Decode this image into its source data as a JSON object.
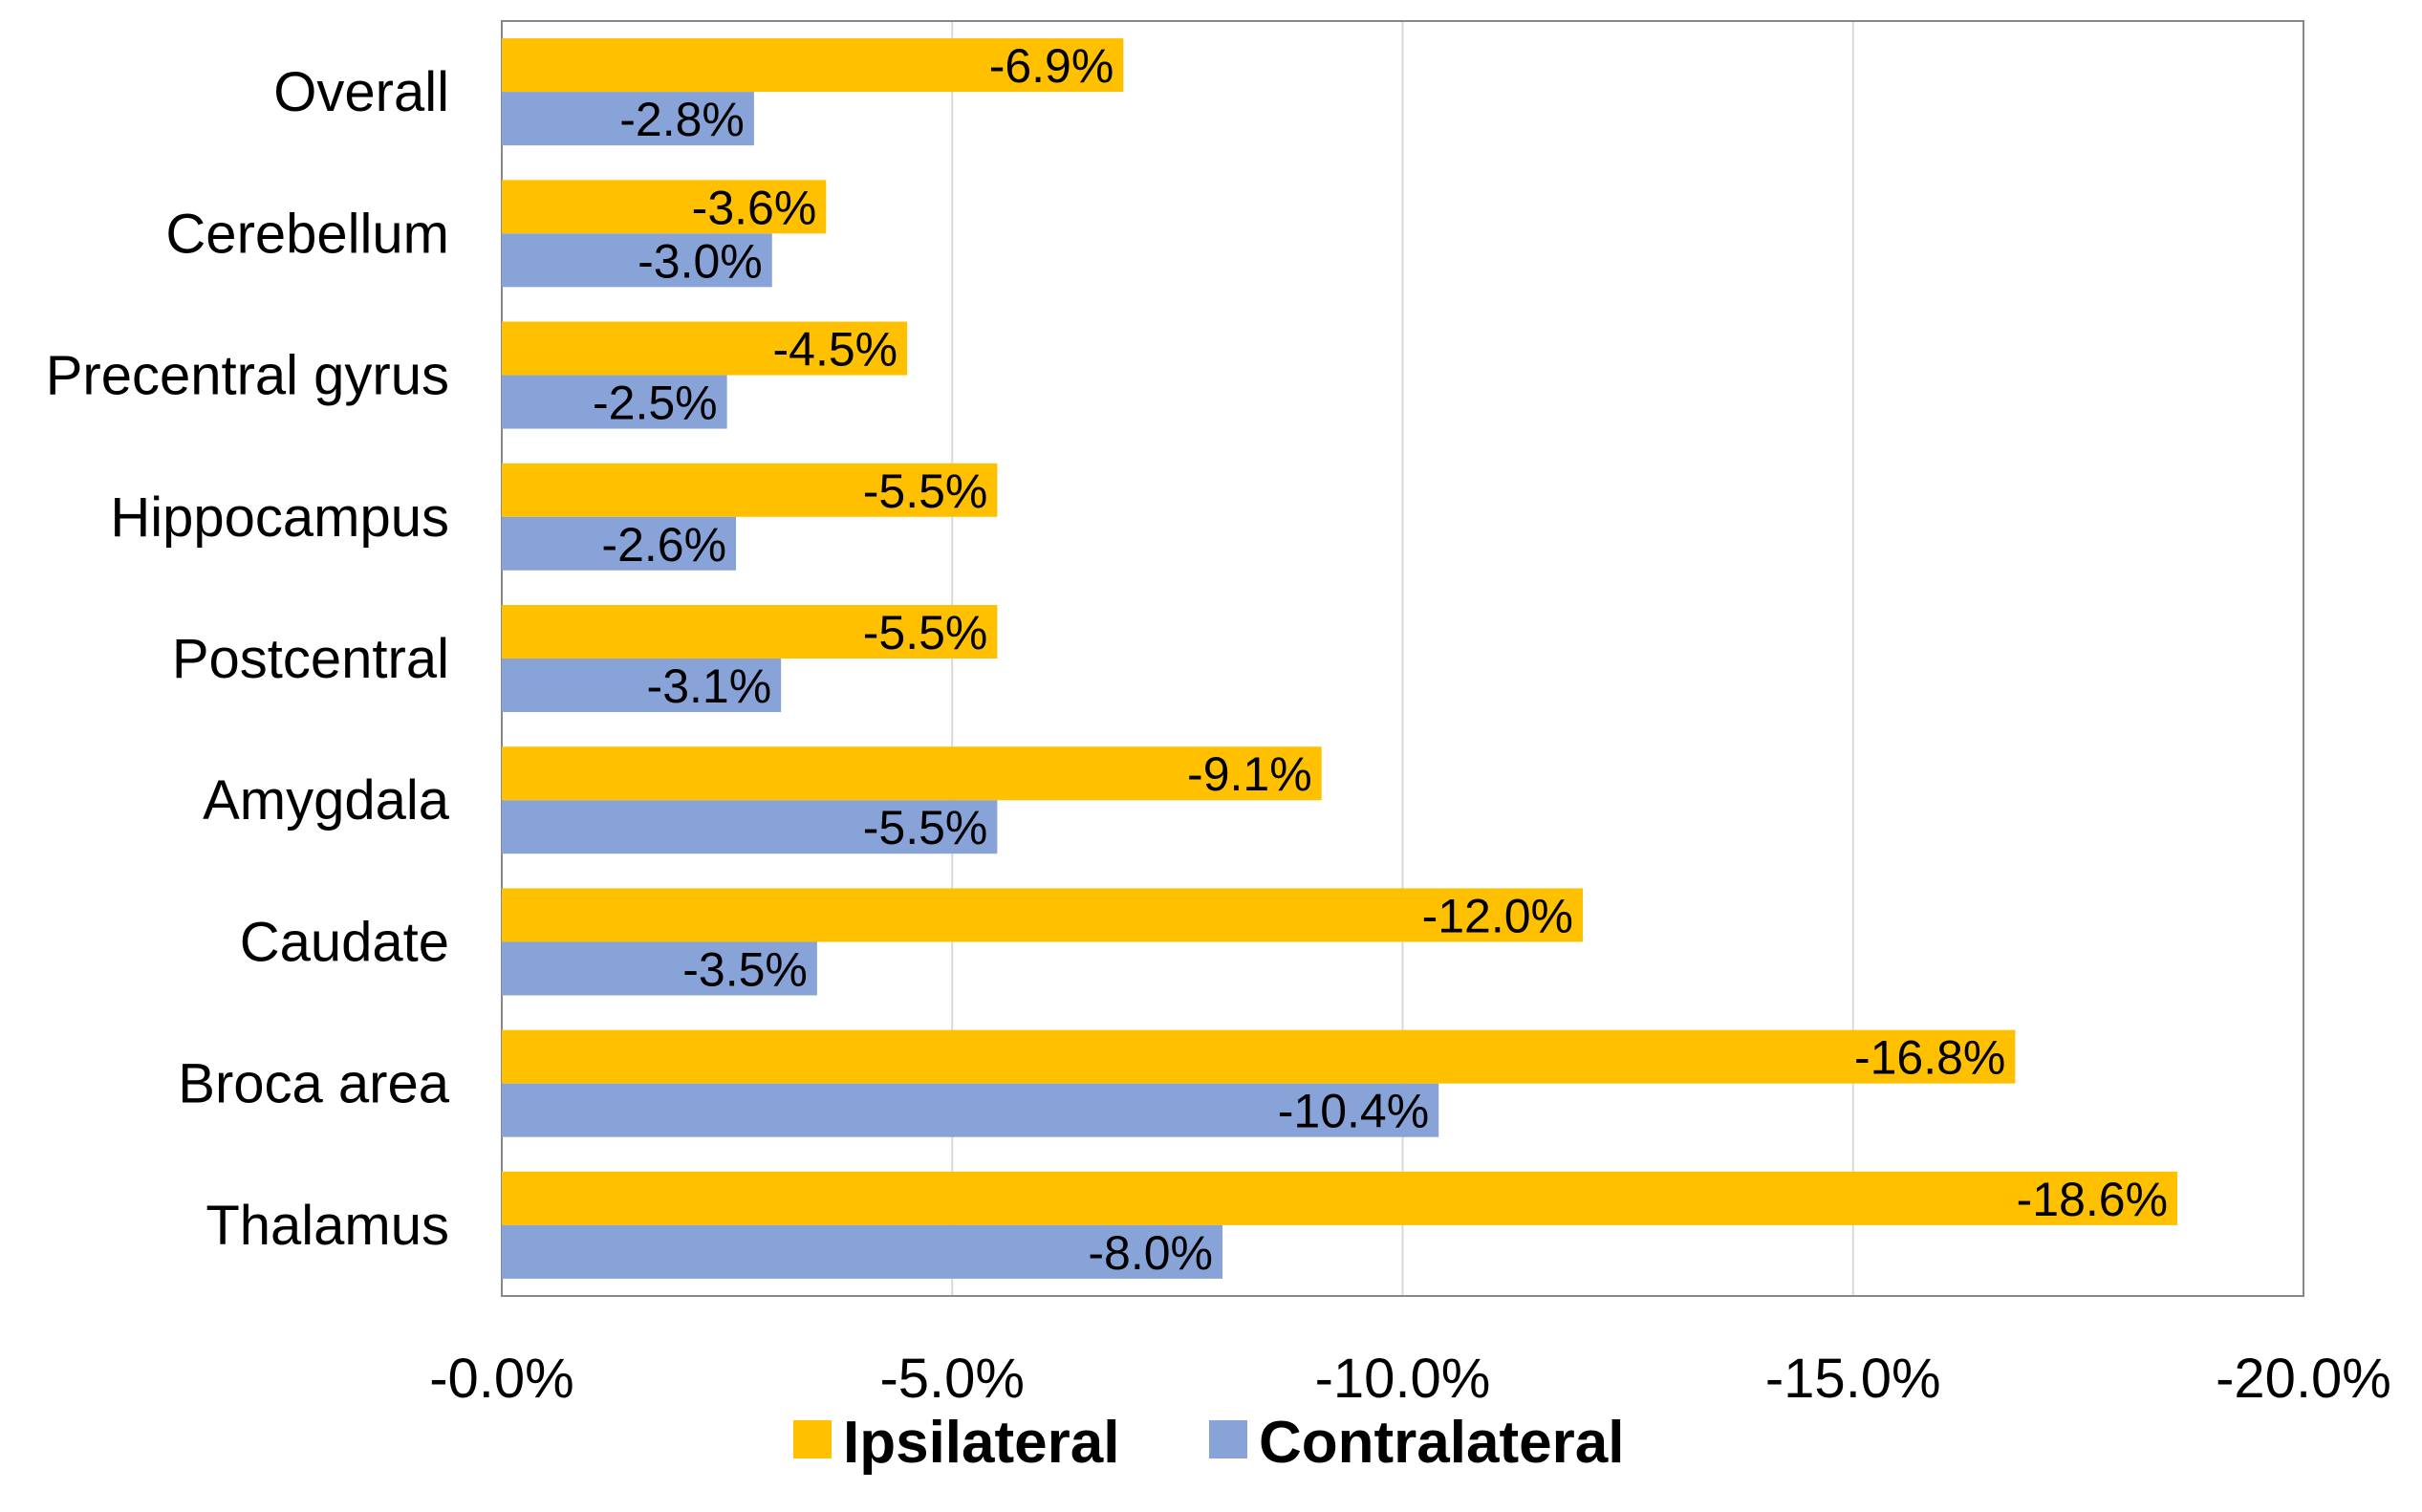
{
  "chart_data": {
    "type": "bar",
    "orientation": "horizontal",
    "categories": [
      "Overall",
      "Cerebellum",
      "Precentral gyrus",
      "Hippocampus",
      "Postcentral",
      "Amygdala",
      "Caudate",
      "Broca area",
      "Thalamus"
    ],
    "series": [
      {
        "name": "Ipsilateral",
        "color": "#FFC000",
        "values": [
          -6.9,
          -3.6,
          -4.5,
          -5.5,
          -5.5,
          -9.1,
          -12.0,
          -16.8,
          -18.6
        ],
        "labels": [
          "-6.9%",
          "-3.6%",
          "-4.5%",
          "-5.5%",
          "-5.5%",
          "-9.1%",
          "-12.0%",
          "-16.8%",
          "-18.6%"
        ]
      },
      {
        "name": "Contralateral",
        "color": "#87A3D8",
        "values": [
          -2.8,
          -3.0,
          -2.5,
          -2.6,
          -3.1,
          -5.5,
          -3.5,
          -10.4,
          -8.0
        ],
        "labels": [
          "-2.8%",
          "-3.0%",
          "-2.5%",
          "-2.6%",
          "-3.1%",
          "-5.5%",
          "-3.5%",
          "-10.4%",
          "-8.0%"
        ]
      }
    ],
    "x_ticks": [
      0,
      -5,
      -10,
      -15,
      -20
    ],
    "x_tick_labels": [
      "-0.0%",
      "-5.0%",
      "-10.0%",
      "-15.0%",
      "-20.0%"
    ],
    "xlim": [
      0,
      -20
    ],
    "x_reversed": true,
    "title": "",
    "xlabel": "",
    "ylabel": "",
    "grid": "vertical",
    "legend": "bottom"
  }
}
